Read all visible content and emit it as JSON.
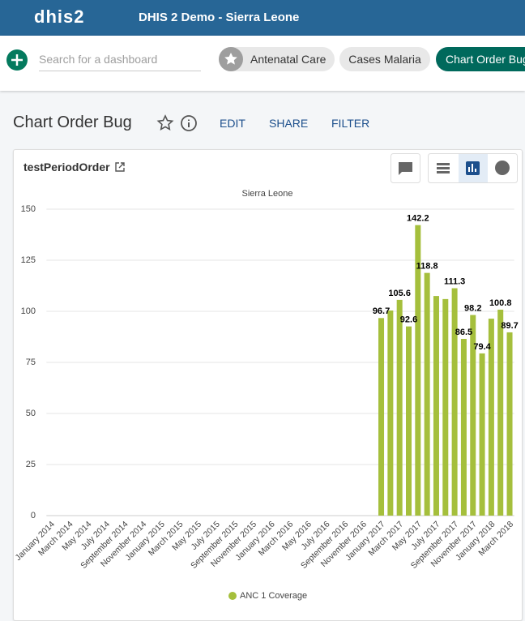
{
  "header": {
    "logo": "dhis2",
    "title": "DHIS 2 Demo - Sierra Leone"
  },
  "search": {
    "placeholder": "Search for a dashboard"
  },
  "dashboards": [
    "Antenatal Care",
    "Cases Malaria",
    "Chart Order Bug"
  ],
  "dashboard": {
    "title": "Chart Order Bug",
    "actions": [
      "EDIT",
      "SHARE",
      "FILTER"
    ]
  },
  "item": {
    "title": "testPeriodOrder"
  },
  "chart_data": {
    "type": "bar",
    "subtitle": "Sierra Leone",
    "categories": [
      "January 2014",
      null,
      "March 2014",
      null,
      "May 2014",
      null,
      "July 2014",
      null,
      "September 2014",
      null,
      "November 2014",
      null,
      "January 2015",
      null,
      "March 2015",
      null,
      "May 2015",
      null,
      "July 2015",
      null,
      "September 2015",
      null,
      "November 2015",
      null,
      "January 2016",
      null,
      "March 2016",
      null,
      "May 2016",
      null,
      "July 2016",
      null,
      "September 2016",
      null,
      "November 2016",
      null,
      "January 2017",
      null,
      "March 2017",
      null,
      "May 2017",
      null,
      "July 2017",
      null,
      "September 2017",
      null,
      "November 2017",
      null,
      "January 2018",
      null,
      "March 2018"
    ],
    "series": [
      {
        "name": "ANC 1 Coverage",
        "color": "#a5bf3c",
        "values": [
          null,
          null,
          null,
          null,
          null,
          null,
          null,
          null,
          null,
          null,
          null,
          null,
          null,
          null,
          null,
          null,
          null,
          null,
          null,
          null,
          null,
          null,
          null,
          null,
          null,
          null,
          null,
          null,
          null,
          null,
          null,
          null,
          null,
          null,
          null,
          null,
          96.7,
          100.4,
          105.6,
          92.6,
          142.2,
          118.8,
          107.5,
          106,
          111.3,
          86.5,
          98.2,
          79.4,
          96.4,
          100.8,
          89.7
        ],
        "value_labels": [
          null,
          null,
          null,
          null,
          null,
          null,
          null,
          null,
          null,
          null,
          null,
          null,
          null,
          null,
          null,
          null,
          null,
          null,
          null,
          null,
          null,
          null,
          null,
          null,
          null,
          null,
          null,
          null,
          null,
          null,
          null,
          null,
          null,
          null,
          null,
          null,
          "96.7",
          null,
          "105.6",
          "92.6",
          "142.2",
          "118.8",
          null,
          null,
          "111.3",
          "86.5",
          "98.2",
          "79.4",
          null,
          "100.8",
          "89.7"
        ]
      }
    ],
    "ylim": [
      0,
      150
    ],
    "yticks": [
      0,
      25,
      50,
      75,
      100,
      125,
      150
    ],
    "grid": true,
    "legend": "bottom"
  }
}
